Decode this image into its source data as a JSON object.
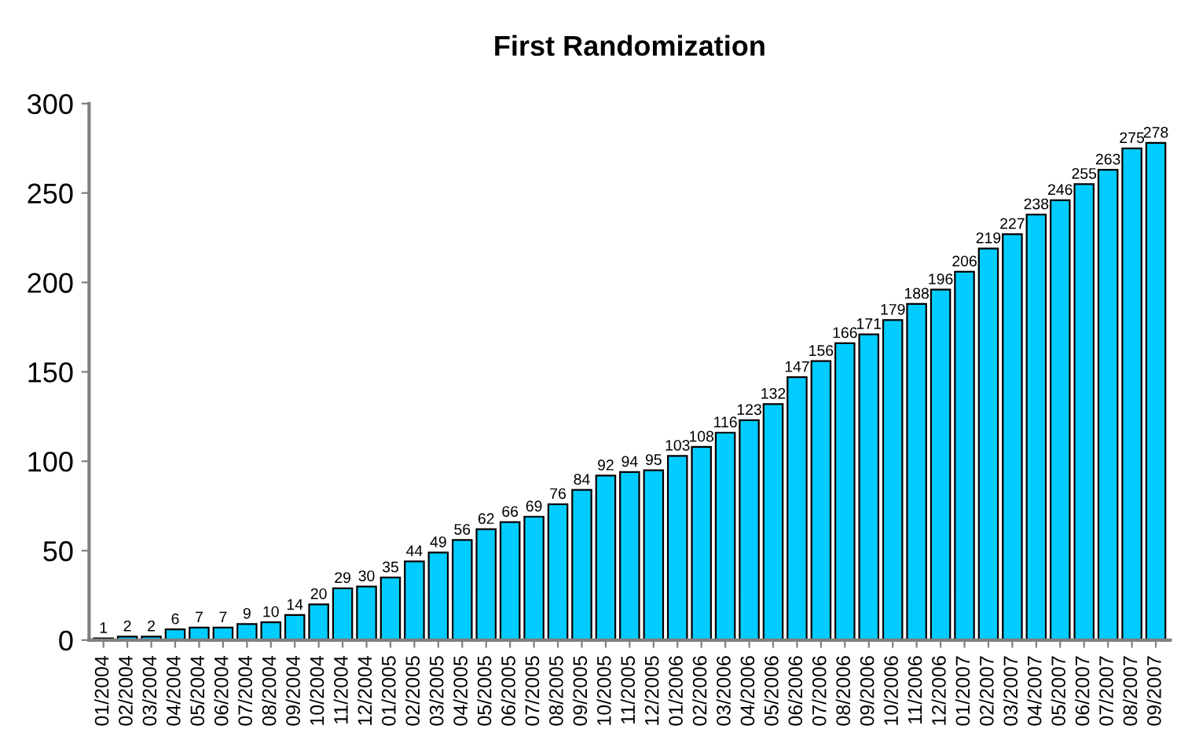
{
  "chart_data": {
    "type": "bar",
    "title": "First Randomization",
    "categories": [
      "01/2004",
      "02/2004",
      "03/2004",
      "04/2004",
      "05/2004",
      "06/2004",
      "07/2004",
      "08/2004",
      "09/2004",
      "10/2004",
      "11/2004",
      "12/2004",
      "01/2005",
      "02/2005",
      "03/2005",
      "04/2005",
      "05/2005",
      "06/2005",
      "07/2005",
      "08/2005",
      "09/2005",
      "10/2005",
      "11/2005",
      "12/2005",
      "01/2006",
      "02/2006",
      "03/2006",
      "04/2006",
      "05/2006",
      "06/2006",
      "07/2006",
      "08/2006",
      "09/2006",
      "10/2006",
      "11/2006",
      "12/2006",
      "01/2007",
      "02/2007",
      "03/2007",
      "04/2007",
      "05/2007",
      "06/2007",
      "07/2007",
      "08/2007",
      "09/2007"
    ],
    "values": [
      1,
      2,
      2,
      6,
      7,
      7,
      9,
      10,
      14,
      20,
      29,
      30,
      35,
      44,
      49,
      56,
      62,
      66,
      69,
      76,
      84,
      92,
      94,
      95,
      103,
      108,
      116,
      123,
      132,
      147,
      156,
      166,
      171,
      179,
      188,
      196,
      206,
      219,
      227,
      238,
      246,
      255,
      263,
      275,
      278
    ],
    "color": "#00ccff",
    "ylim": [
      0,
      300
    ],
    "yticks": [
      0,
      50,
      100,
      150,
      200,
      250,
      300
    ],
    "data_labels": true,
    "grid": false,
    "legend": false
  }
}
